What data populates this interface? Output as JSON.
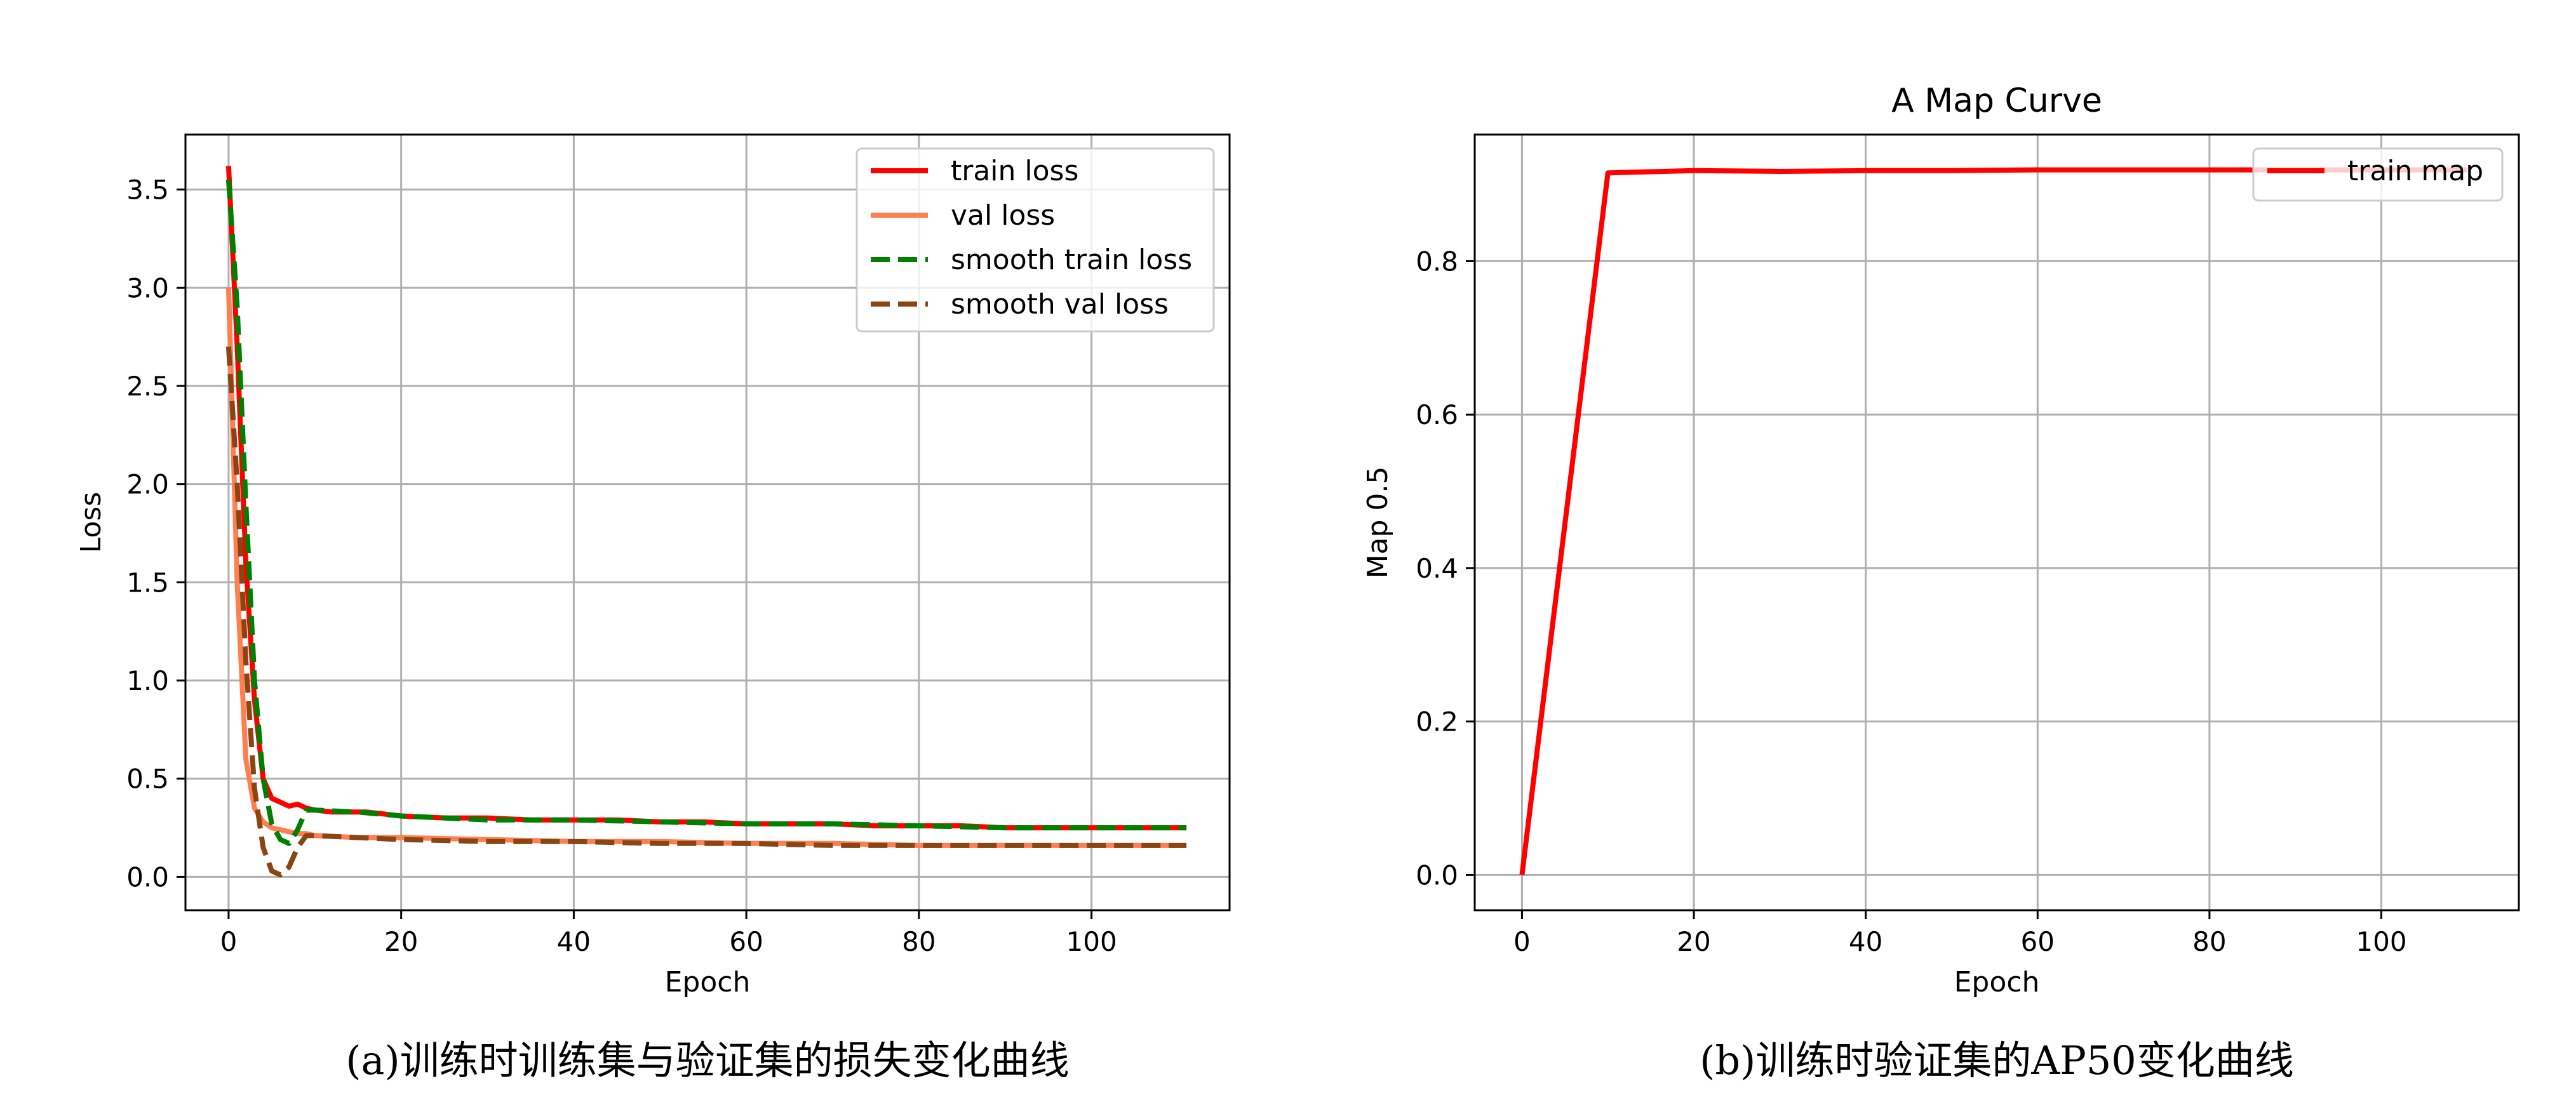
{
  "chart_data": [
    {
      "type": "line",
      "title": "",
      "xlabel": "Epoch",
      "ylabel": "Loss",
      "xlim": [
        -5,
        116
      ],
      "ylim": [
        -0.17,
        3.78
      ],
      "xticks": [
        0,
        20,
        40,
        60,
        80,
        100
      ],
      "yticks": [
        0.0,
        0.5,
        1.0,
        1.5,
        2.0,
        2.5,
        3.0,
        3.5
      ],
      "xtick_labels": [
        "0",
        "20",
        "40",
        "60",
        "80",
        "100"
      ],
      "ytick_labels": [
        "0.0",
        "0.5",
        "1.0",
        "1.5",
        "2.0",
        "2.5",
        "3.0",
        "3.5"
      ],
      "grid": true,
      "legend_position": "top-right",
      "caption": "(a)训练时训练集与验证集的损失变化曲线",
      "series": [
        {
          "name": "train loss",
          "color": "#ff0000",
          "dash": "solid",
          "x": [
            0,
            1,
            2,
            3,
            4,
            5,
            6,
            7,
            8,
            9,
            10,
            12,
            14,
            16,
            18,
            20,
            25,
            30,
            35,
            40,
            45,
            50,
            55,
            60,
            65,
            70,
            75,
            80,
            85,
            90,
            95,
            100,
            105,
            111
          ],
          "y": [
            3.62,
            2.7,
            1.6,
            0.9,
            0.5,
            0.4,
            0.38,
            0.36,
            0.37,
            0.35,
            0.34,
            0.33,
            0.33,
            0.33,
            0.32,
            0.31,
            0.3,
            0.3,
            0.29,
            0.29,
            0.29,
            0.28,
            0.28,
            0.27,
            0.27,
            0.27,
            0.26,
            0.26,
            0.26,
            0.25,
            0.25,
            0.25,
            0.25,
            0.25
          ]
        },
        {
          "name": "val loss",
          "color": "#ff7f50",
          "dash": "solid",
          "x": [
            0,
            1,
            2,
            3,
            4,
            5,
            6,
            7,
            8,
            9,
            10,
            15,
            20,
            30,
            40,
            50,
            60,
            70,
            80,
            90,
            100,
            111
          ],
          "y": [
            3.0,
            1.5,
            0.6,
            0.35,
            0.28,
            0.25,
            0.24,
            0.23,
            0.22,
            0.22,
            0.21,
            0.2,
            0.2,
            0.19,
            0.18,
            0.18,
            0.17,
            0.17,
            0.16,
            0.16,
            0.16,
            0.16
          ]
        },
        {
          "name": "smooth train loss",
          "color": "#008000",
          "dash": "dashed",
          "x": [
            0,
            1,
            2,
            3,
            4,
            5,
            6,
            7,
            8,
            9,
            10,
            15,
            20,
            30,
            40,
            50,
            60,
            70,
            80,
            90,
            100,
            111
          ],
          "y": [
            3.55,
            2.9,
            1.9,
            1.0,
            0.5,
            0.27,
            0.19,
            0.17,
            0.24,
            0.34,
            0.34,
            0.33,
            0.31,
            0.29,
            0.29,
            0.28,
            0.27,
            0.27,
            0.26,
            0.25,
            0.25,
            0.25
          ]
        },
        {
          "name": "smooth val loss",
          "color": "#8b4513",
          "dash": "dashed",
          "x": [
            0,
            1,
            2,
            3,
            4,
            5,
            6,
            7,
            8,
            9,
            10,
            15,
            20,
            30,
            40,
            50,
            60,
            70,
            80,
            90,
            100,
            111
          ],
          "y": [
            2.7,
            2.0,
            1.1,
            0.45,
            0.15,
            0.03,
            0.01,
            0.05,
            0.15,
            0.21,
            0.21,
            0.2,
            0.19,
            0.18,
            0.18,
            0.17,
            0.17,
            0.16,
            0.16,
            0.16,
            0.16,
            0.16
          ]
        }
      ]
    },
    {
      "type": "line",
      "title": "A Map Curve",
      "xlabel": "Epoch",
      "ylabel": "Map 0.5",
      "xlim": [
        -5.5,
        116
      ],
      "ylim": [
        -0.046,
        0.965
      ],
      "xticks": [
        0,
        20,
        40,
        60,
        80,
        100
      ],
      "yticks": [
        0.0,
        0.2,
        0.4,
        0.6,
        0.8
      ],
      "xtick_labels": [
        "0",
        "20",
        "40",
        "60",
        "80",
        "100"
      ],
      "ytick_labels": [
        "0.0",
        "0.2",
        "0.4",
        "0.6",
        "0.8"
      ],
      "grid": true,
      "legend_position": "top-right",
      "caption": "(b)训练时验证集的AP50变化曲线",
      "series": [
        {
          "name": "train map",
          "color": "#ff0000",
          "dash": "solid",
          "x": [
            0,
            10,
            20,
            30,
            40,
            50,
            60,
            70,
            80,
            90,
            100,
            110
          ],
          "y": [
            0.0,
            0.915,
            0.918,
            0.917,
            0.918,
            0.918,
            0.919,
            0.919,
            0.919,
            0.919,
            0.919,
            0.919
          ]
        }
      ]
    }
  ]
}
